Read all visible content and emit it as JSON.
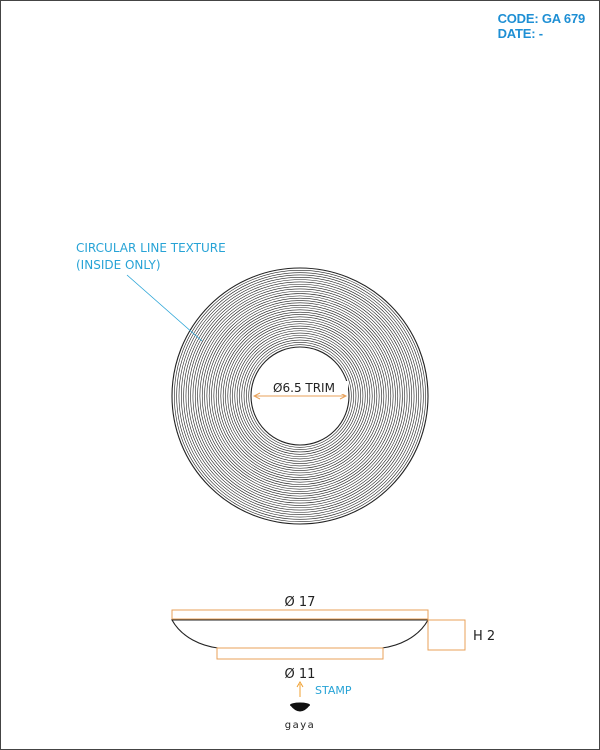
{
  "header": {
    "code": "CODE: GA 679",
    "date": "DATE: -"
  },
  "annotations": {
    "texture_line1": "CIRCULAR LINE TEXTURE",
    "texture_line2": "(INSIDE ONLY)",
    "trim": "Ø6.5 TRIM",
    "top_diameter": "Ø 17",
    "height": "H 2",
    "base_diameter": "Ø 11",
    "stamp": "STAMP"
  },
  "logo": {
    "text": "gaya"
  },
  "colors": {
    "header": "#1e8fd4",
    "annotation": "#27a3d6",
    "dimension": "#e8a15a",
    "stamp_arrow": "#f0a030",
    "line": "#222222"
  }
}
